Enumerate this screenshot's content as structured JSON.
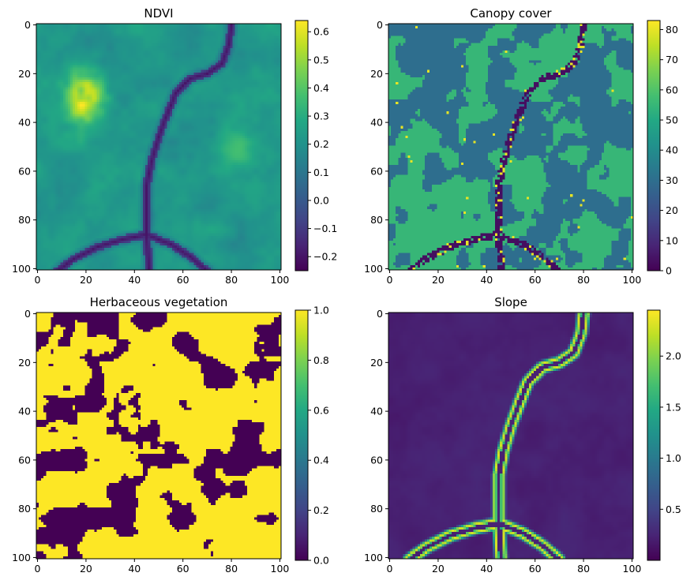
{
  "chart_data": [
    {
      "type": "heatmap",
      "title": "NDVI",
      "colormap": "viridis",
      "grid_size": 101,
      "xlim": [
        0,
        101
      ],
      "ylim": [
        101,
        0
      ],
      "x_ticks": [
        0,
        20,
        40,
        60,
        80,
        100
      ],
      "y_ticks": [
        0,
        20,
        40,
        60,
        80,
        100
      ],
      "colorbar": {
        "min": -0.25,
        "max": 0.64,
        "ticks": [
          -0.2,
          -0.1,
          0.0,
          0.1,
          0.2,
          0.3,
          0.4,
          0.5,
          0.6
        ],
        "tick_labels": [
          "−0.2",
          "−0.1",
          "0.0",
          "0.1",
          "0.2",
          "0.3",
          "0.4",
          "0.5",
          "0.6"
        ]
      },
      "features": "moderate values (~0.1–0.3) overall; bright patch near x≈20,y≈35 (~0.6); low-value channel (~−0.2) running from top-right (x≈80,y≈10) through x≈45,y≈90 to bottom"
    },
    {
      "type": "heatmap",
      "title": "Canopy cover",
      "colormap": "viridis",
      "grid_size": 101,
      "xlim": [
        0,
        101
      ],
      "ylim": [
        101,
        0
      ],
      "x_ticks": [
        0,
        20,
        40,
        60,
        80,
        100
      ],
      "y_ticks": [
        0,
        20,
        40,
        60,
        80,
        100
      ],
      "colorbar": {
        "min": 0,
        "max": 83,
        "ticks": [
          0,
          10,
          20,
          30,
          40,
          50,
          60,
          70,
          80
        ],
        "tick_labels": [
          "0",
          "10",
          "20",
          "30",
          "40",
          "50",
          "60",
          "70",
          "80"
        ]
      },
      "features": "two classes ~30 and ~55 in patches; very low values (~0) along the channel; scattered high pixels (~80)"
    },
    {
      "type": "heatmap",
      "title": "Herbaceous vegetation",
      "colormap": "viridis",
      "grid_size": 101,
      "xlim": [
        0,
        101
      ],
      "ylim": [
        101,
        0
      ],
      "x_ticks": [
        0,
        20,
        40,
        60,
        80,
        100
      ],
      "y_ticks": [
        0,
        20,
        40,
        60,
        80,
        100
      ],
      "colorbar": {
        "min": 0.0,
        "max": 1.0,
        "ticks": [
          0.0,
          0.2,
          0.4,
          0.6,
          0.8,
          1.0
        ],
        "tick_labels": [
          "0.0",
          "0.2",
          "0.4",
          "0.6",
          "0.8",
          "1.0"
        ]
      },
      "features": "binary mask, mostly 1 with patches of 0; large 0 patch around x≈85,y≈55"
    },
    {
      "type": "heatmap",
      "title": "Slope",
      "colormap": "viridis",
      "grid_size": 101,
      "xlim": [
        0,
        101
      ],
      "ylim": [
        101,
        0
      ],
      "x_ticks": [
        0,
        20,
        40,
        60,
        80,
        100
      ],
      "y_ticks": [
        0,
        20,
        40,
        60,
        80,
        100
      ],
      "colorbar": {
        "min": 0.0,
        "max": 2.45,
        "ticks": [
          0.5,
          1.0,
          1.5,
          2.0
        ],
        "tick_labels": [
          "0.5",
          "1.0",
          "1.5",
          "2.0"
        ]
      },
      "features": "low slope (~0.2) overall; high slope (~2.3) ridges flanking the channel from x≈80,y≈0 down to x≈45,y≈85, branching to bottom-left and bottom-right"
    }
  ]
}
